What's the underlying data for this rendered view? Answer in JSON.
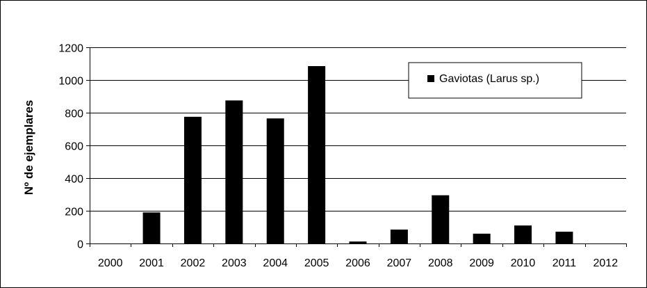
{
  "chart_data": {
    "type": "bar",
    "title": "",
    "xlabel": "",
    "ylabel": "Nº de ejemplares",
    "categories": [
      "2000",
      "2001",
      "2002",
      "2003",
      "2004",
      "2005",
      "2006",
      "2007",
      "2008",
      "2009",
      "2010",
      "2011",
      "2012"
    ],
    "series": [
      {
        "name": "Gaviotas (Larus sp.)",
        "values": [
          0,
          190,
          775,
          875,
          765,
          1085,
          12,
          85,
          295,
          60,
          110,
          72,
          0
        ],
        "color": "#000000"
      }
    ],
    "ylim": [
      0,
      1200
    ],
    "yticks": [
      0,
      200,
      400,
      600,
      800,
      1000,
      1200
    ],
    "grid": "horizontal",
    "legend_position": "top-right"
  }
}
